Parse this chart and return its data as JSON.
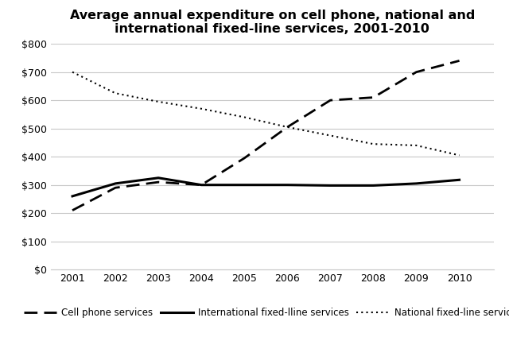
{
  "title": "Average annual expenditure on cell phone, national and\ninternational fixed-line services, 2001-2010",
  "years": [
    2001,
    2002,
    2003,
    2004,
    2005,
    2006,
    2007,
    2008,
    2009,
    2010
  ],
  "cell_phone": [
    210,
    290,
    310,
    300,
    395,
    505,
    600,
    610,
    700,
    740
  ],
  "intl_fixed": [
    260,
    305,
    325,
    300,
    300,
    300,
    298,
    298,
    305,
    318
  ],
  "natl_fixed": [
    700,
    625,
    595,
    570,
    540,
    505,
    475,
    445,
    440,
    405
  ],
  "ylim": [
    0,
    800
  ],
  "yticks": [
    0,
    100,
    200,
    300,
    400,
    500,
    600,
    700,
    800
  ],
  "background_color": "#ffffff",
  "grid_color": "#c8c8c8",
  "line_color": "#000000",
  "legend_labels": [
    "Cell phone services",
    "International fixed-lline services",
    "National fixed-line services"
  ],
  "title_fontsize": 11.5,
  "legend_fontsize": 8.5,
  "tick_fontsize": 9
}
